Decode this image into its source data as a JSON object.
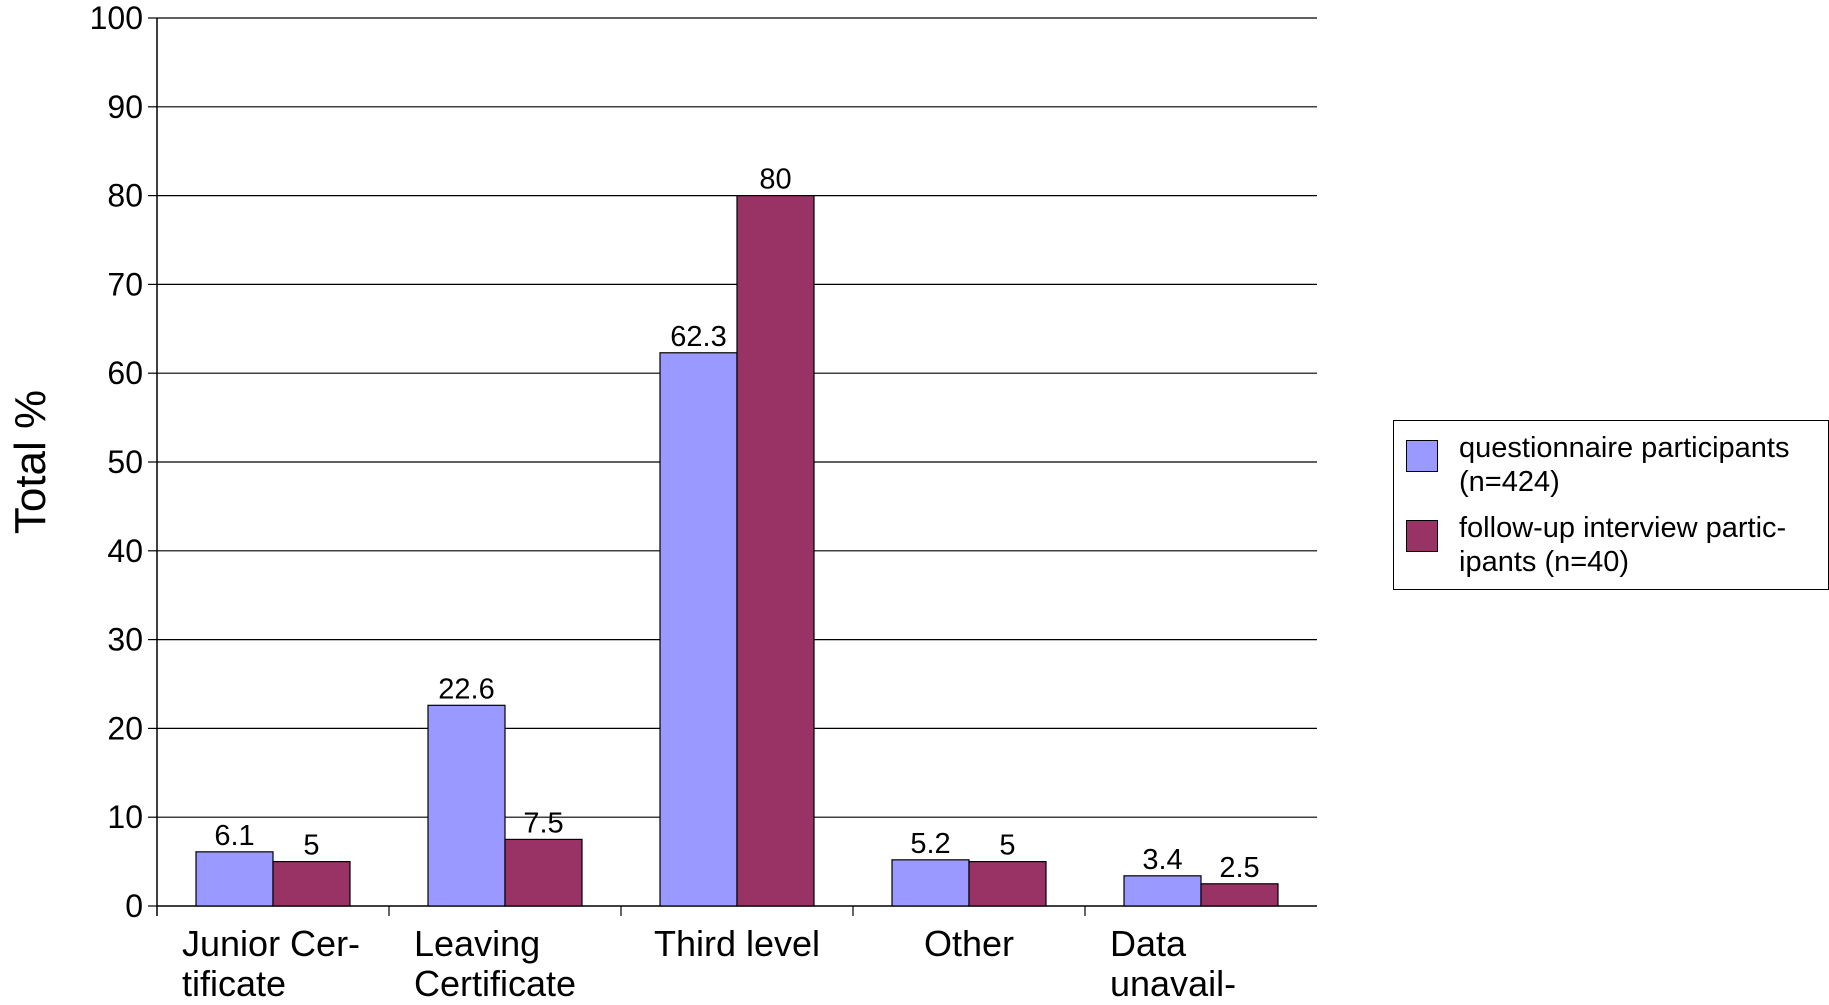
{
  "chart_data": {
    "type": "bar",
    "title": "",
    "xlabel": "",
    "ylabel": "Total %",
    "ylim": [
      0,
      100
    ],
    "yticks": [
      0,
      10,
      20,
      30,
      40,
      50,
      60,
      70,
      80,
      90,
      100
    ],
    "grid": true,
    "legend_position": "right",
    "categories": [
      [
        "Junior Cer-",
        "tificate"
      ],
      [
        "Leaving",
        "Certificate"
      ],
      [
        "Third level"
      ],
      [
        "Other"
      ],
      [
        "Data",
        "unavail-"
      ]
    ],
    "series": [
      {
        "name": "questionnaire participants (n=424)",
        "legend_lines": [
          "questionnaire participants",
          "(n=424)"
        ],
        "color": "#9999ff",
        "values": [
          6.1,
          22.6,
          62.3,
          5.2,
          3.4
        ],
        "labels": [
          "6.1",
          "22.6",
          "62.3",
          "5.2",
          "3.4"
        ]
      },
      {
        "name": "follow-up interview participants (n=40)",
        "legend_lines": [
          "follow-up interview partic-",
          "ipants (n=40)"
        ],
        "color": "#993366",
        "values": [
          5,
          7.5,
          80,
          5,
          2.5
        ],
        "labels": [
          "5",
          "7.5",
          "80",
          "5",
          "2.5"
        ]
      }
    ]
  }
}
